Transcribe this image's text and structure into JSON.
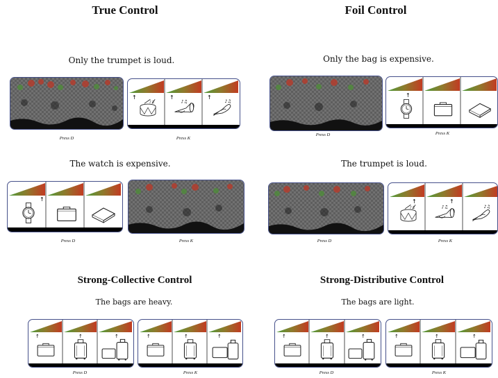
{
  "sections": [
    {
      "id": "true-control",
      "title": "True Control"
    },
    {
      "id": "foil-control",
      "title": "Foil Control"
    },
    {
      "id": "strong-collective-control",
      "title": "Strong-Collective Control"
    },
    {
      "id": "strong-distributive-control",
      "title": "Strong-Distributive Control"
    }
  ],
  "sentences": {
    "s1": "Only the trumpet is loud.",
    "s2": "Only the bag is expensive.",
    "s3": "The watch is expensive.",
    "s4": "The trumpet is loud.",
    "s5": "The bags are heavy.",
    "s6": "The bags are light."
  },
  "responses": {
    "d": "Press D",
    "k": "Press K"
  },
  "panel_icons": {
    "instruments": [
      "drum-icon",
      "trumpet-icon",
      "bird-icon"
    ],
    "valuables": [
      "watch-icon",
      "briefcase-icon",
      "book-icon"
    ],
    "bags_heavy": [
      "briefcase-icon",
      "suitcase-icon",
      "suitcase-pair-icon"
    ],
    "colors": {
      "gradient_start": "#4e9a3a",
      "gradient_end": "#c23b22",
      "card_border": "#45508a"
    }
  }
}
